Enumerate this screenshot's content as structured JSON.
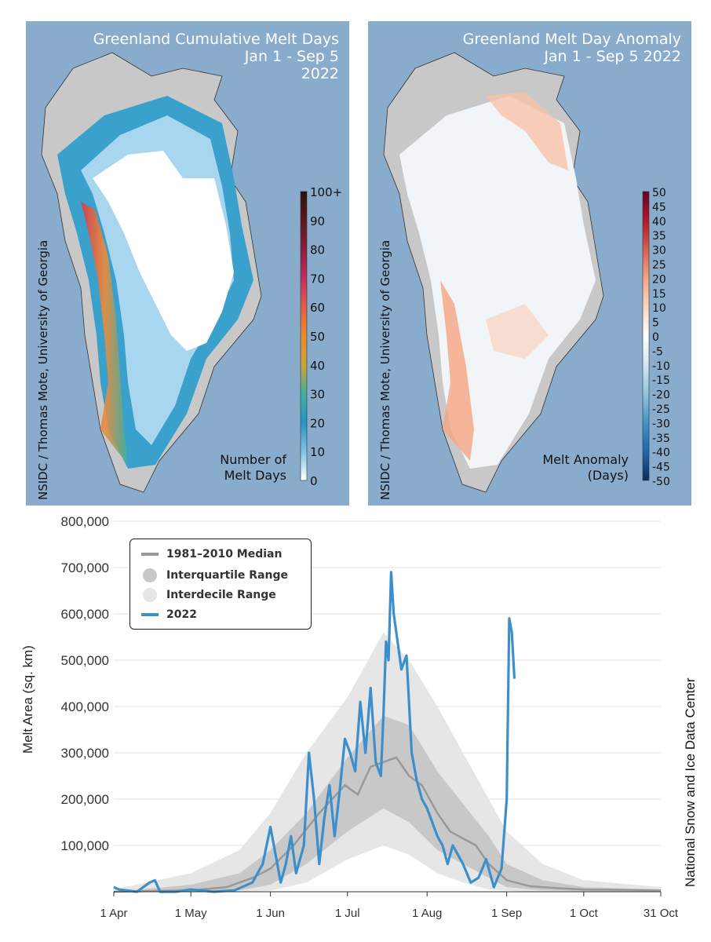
{
  "maps": [
    {
      "title_lines": [
        "Greenland Cumulative Melt Days",
        "Jan 1 - Sep 5",
        "2022"
      ],
      "credit": "NSIDC / Thomas Mote, University of Georgia",
      "colorbar": {
        "label_lines": [
          "Number of",
          "Melt Days"
        ],
        "ticks": [
          "100+",
          "90",
          "80",
          "70",
          "60",
          "50",
          "40",
          "30",
          "20",
          "10",
          "0"
        ],
        "colors": [
          "#2b1208",
          "#5a1a1a",
          "#8c1f3a",
          "#c42d5f",
          "#e0604a",
          "#e88a2e",
          "#c9a23a",
          "#3fb0a0",
          "#2a94c4",
          "#7ec4e6",
          "#ffffff"
        ]
      }
    },
    {
      "title_lines": [
        "Greenland Melt Day Anomaly",
        "Jan 1 - Sep 5 2022"
      ],
      "credit": "NSIDC / Thomas Mote, University of Georgia",
      "colorbar": {
        "label_lines": [
          "Melt Anomaly",
          "(Days)"
        ],
        "ticks": [
          "50",
          "45",
          "40",
          "35",
          "30",
          "25",
          "20",
          "15",
          "10",
          "5",
          "0",
          "-5",
          "-10",
          "-15",
          "-20",
          "-25",
          "-30",
          "-35",
          "-40",
          "-45",
          "-50"
        ],
        "colors": [
          "#67001f",
          "#b2182b",
          "#d6604d",
          "#f4a582",
          "#fbd6c2",
          "#ffffff",
          "#d4e6f1",
          "#92c5de",
          "#4393c3",
          "#2166ac",
          "#053061"
        ]
      }
    }
  ],
  "chart_data": {
    "type": "line",
    "title": "",
    "ylabel": "Melt Area (sq. km)",
    "xlabel": "",
    "credit": "National Snow and Ice Data Center",
    "ylim": [
      0,
      800000
    ],
    "yticks": [
      100000,
      200000,
      300000,
      400000,
      500000,
      600000,
      700000,
      800000
    ],
    "ytick_labels": [
      "100,000",
      "200,000",
      "300,000",
      "400,000",
      "500,000",
      "600,000",
      "700,000",
      "800,000"
    ],
    "x_range_days": [
      "2022-04-01",
      "2022-10-31"
    ],
    "xtick_labels": [
      "1 Apr",
      "1 May",
      "1 Jun",
      "1 Jul",
      "1 Aug",
      "1 Sep",
      "1 Oct",
      "31 Oct"
    ],
    "xtick_dates": [
      "2022-04-01",
      "2022-05-01",
      "2022-06-01",
      "2022-07-01",
      "2022-08-01",
      "2022-09-01",
      "2022-10-01",
      "2022-10-31"
    ],
    "grid": true,
    "legend_position": "top-left",
    "legend": [
      {
        "label": "1981–2010 Median",
        "color": "#999999"
      },
      {
        "label": "Interquartile Range",
        "color": "#c8c8c8"
      },
      {
        "label": "Interdecile Range",
        "color": "#e6e6e6"
      },
      {
        "label": "2022",
        "color": "#3d8fcc"
      }
    ],
    "median": {
      "dates": [
        "2022-04-01",
        "2022-05-01",
        "2022-05-15",
        "2022-05-25",
        "2022-06-01",
        "2022-06-10",
        "2022-06-20",
        "2022-06-30",
        "2022-07-05",
        "2022-07-10",
        "2022-07-15",
        "2022-07-20",
        "2022-07-25",
        "2022-07-30",
        "2022-08-05",
        "2022-08-10",
        "2022-08-20",
        "2022-08-25",
        "2022-09-01",
        "2022-09-10",
        "2022-09-20",
        "2022-10-01",
        "2022-10-31"
      ],
      "values": [
        0,
        3000,
        10000,
        30000,
        50000,
        100000,
        170000,
        230000,
        210000,
        270000,
        280000,
        290000,
        250000,
        230000,
        170000,
        130000,
        100000,
        60000,
        25000,
        12000,
        8000,
        5000,
        3000
      ]
    },
    "interquartile": {
      "dates": [
        "2022-04-01",
        "2022-05-01",
        "2022-05-20",
        "2022-06-01",
        "2022-06-15",
        "2022-07-01",
        "2022-07-15",
        "2022-07-25",
        "2022-08-05",
        "2022-08-15",
        "2022-08-25",
        "2022-09-01",
        "2022-09-15",
        "2022-10-01",
        "2022-10-31"
      ],
      "low": [
        0,
        0,
        3000,
        15000,
        60000,
        130000,
        180000,
        150000,
        90000,
        60000,
        30000,
        10000,
        3000,
        1000,
        0
      ],
      "high": [
        0,
        15000,
        40000,
        90000,
        170000,
        290000,
        380000,
        360000,
        260000,
        190000,
        120000,
        60000,
        25000,
        10000,
        5000
      ]
    },
    "interdecile": {
      "dates": [
        "2022-04-01",
        "2022-05-01",
        "2022-05-20",
        "2022-06-01",
        "2022-06-15",
        "2022-07-01",
        "2022-07-15",
        "2022-07-25",
        "2022-08-05",
        "2022-08-15",
        "2022-08-25",
        "2022-09-01",
        "2022-09-15",
        "2022-10-01",
        "2022-10-31"
      ],
      "low": [
        0,
        0,
        0,
        2000,
        20000,
        70000,
        100000,
        80000,
        40000,
        20000,
        5000,
        2000,
        0,
        0,
        0
      ],
      "high": [
        5000,
        40000,
        90000,
        170000,
        300000,
        420000,
        560000,
        500000,
        400000,
        300000,
        200000,
        130000,
        60000,
        25000,
        10000
      ]
    },
    "series": [
      {
        "name": "2022",
        "dates": [
          "2022-04-01",
          "2022-04-03",
          "2022-04-10",
          "2022-04-15",
          "2022-04-17",
          "2022-04-19",
          "2022-04-25",
          "2022-05-01",
          "2022-05-10",
          "2022-05-18",
          "2022-05-25",
          "2022-05-29",
          "2022-06-01",
          "2022-06-03",
          "2022-06-05",
          "2022-06-07",
          "2022-06-09",
          "2022-06-11",
          "2022-06-14",
          "2022-06-16",
          "2022-06-18",
          "2022-06-20",
          "2022-06-22",
          "2022-06-24",
          "2022-06-26",
          "2022-06-28",
          "2022-06-30",
          "2022-07-02",
          "2022-07-04",
          "2022-07-06",
          "2022-07-08",
          "2022-07-10",
          "2022-07-12",
          "2022-07-14",
          "2022-07-15",
          "2022-07-16",
          "2022-07-17",
          "2022-07-18",
          "2022-07-19",
          "2022-07-20",
          "2022-07-22",
          "2022-07-24",
          "2022-07-26",
          "2022-07-28",
          "2022-07-30",
          "2022-08-01",
          "2022-08-03",
          "2022-08-05",
          "2022-08-07",
          "2022-08-09",
          "2022-08-11",
          "2022-08-13",
          "2022-08-15",
          "2022-08-18",
          "2022-08-21",
          "2022-08-24",
          "2022-08-27",
          "2022-08-30",
          "2022-09-01",
          "2022-09-02",
          "2022-09-03",
          "2022-09-04"
        ],
        "values": [
          10000,
          5000,
          0,
          20000,
          25000,
          0,
          0,
          5000,
          0,
          3000,
          20000,
          60000,
          140000,
          80000,
          20000,
          60000,
          120000,
          40000,
          100000,
          300000,
          200000,
          60000,
          160000,
          230000,
          120000,
          220000,
          330000,
          300000,
          260000,
          410000,
          300000,
          440000,
          280000,
          250000,
          380000,
          540000,
          500000,
          690000,
          600000,
          560000,
          480000,
          510000,
          300000,
          240000,
          200000,
          180000,
          150000,
          120000,
          100000,
          60000,
          100000,
          80000,
          60000,
          20000,
          30000,
          70000,
          10000,
          50000,
          200000,
          590000,
          560000,
          460000
        ],
        "color": "#3d8fcc"
      }
    ]
  }
}
